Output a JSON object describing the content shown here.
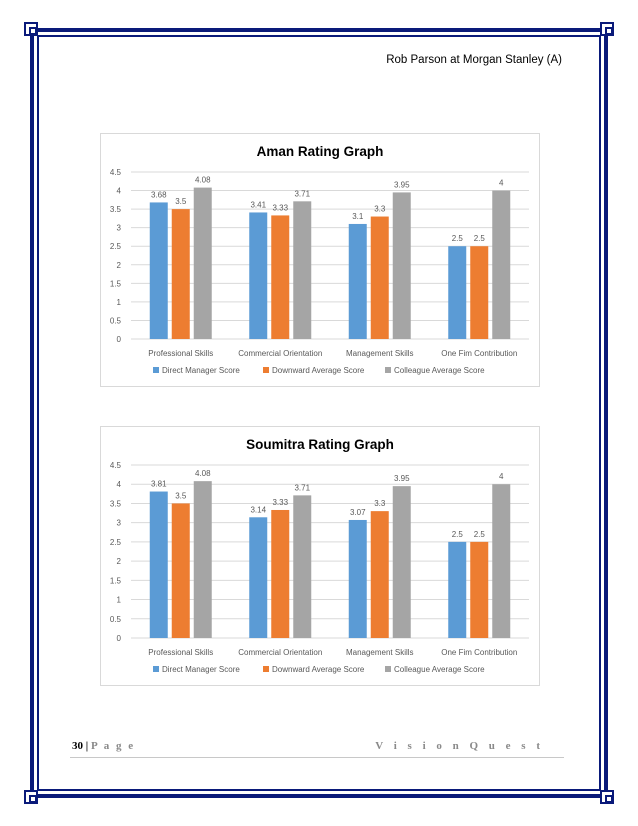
{
  "header": {
    "title": "Rob Parson at Morgan Stanley (A)"
  },
  "footer": {
    "page_number": "30",
    "separator": "|",
    "page_label": "P a g e",
    "brand": "V i s i o n   Q u e s t"
  },
  "colors": {
    "border": "#0a1a7a",
    "series_1": "#5b9bd5",
    "series_2": "#ed7d31",
    "series_3": "#a5a5a5"
  },
  "chart_data": [
    {
      "type": "bar",
      "title": "Aman Rating Graph",
      "categories": [
        "Professional Skills",
        "Commercial Orientation",
        "Management Skills",
        "One Fim Contribution"
      ],
      "series": [
        {
          "name": "Direct Manager Score",
          "values": [
            3.68,
            3.41,
            3.1,
            2.5
          ]
        },
        {
          "name": "Downward Average Score",
          "values": [
            3.5,
            3.33,
            3.3,
            2.5
          ]
        },
        {
          "name": "Colleague Average Score",
          "values": [
            4.08,
            3.71,
            3.95,
            4
          ]
        }
      ],
      "ylim": [
        0,
        4.5
      ],
      "yticks": [
        0,
        0.5,
        1,
        1.5,
        2,
        2.5,
        3,
        3.5,
        4,
        4.5
      ],
      "xlabel": "",
      "ylabel": "",
      "grid": true,
      "legend": "bottom"
    },
    {
      "type": "bar",
      "title": "Soumitra Rating Graph",
      "categories": [
        "Professional Skills",
        "Commercial Orientation",
        "Management Skills",
        "One Fim Contribution"
      ],
      "series": [
        {
          "name": "Direct Manager Score",
          "values": [
            3.81,
            3.14,
            3.07,
            2.5
          ]
        },
        {
          "name": "Downward Average Score",
          "values": [
            3.5,
            3.33,
            3.3,
            2.5
          ]
        },
        {
          "name": "Colleague Average Score",
          "values": [
            4.08,
            3.71,
            3.95,
            4
          ]
        }
      ],
      "ylim": [
        0,
        4.5
      ],
      "yticks": [
        0,
        0.5,
        1,
        1.5,
        2,
        2.5,
        3,
        3.5,
        4,
        4.5
      ],
      "xlabel": "",
      "ylabel": "",
      "grid": true,
      "legend": "bottom"
    }
  ]
}
